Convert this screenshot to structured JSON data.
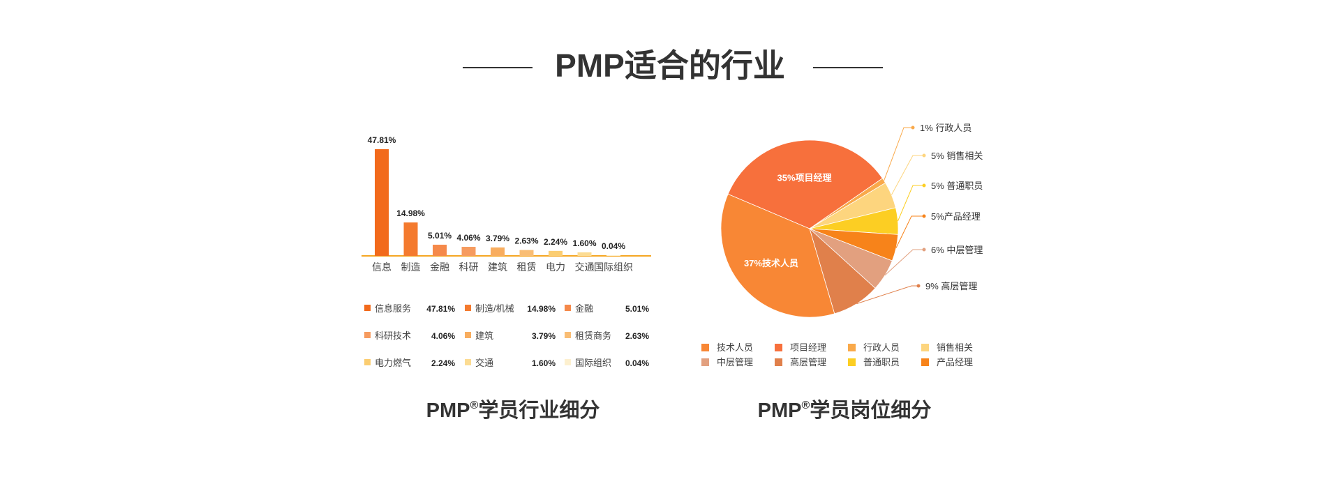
{
  "page": {
    "title": "PMP适合的行业",
    "left_caption": "PMP",
    "left_caption_sup": "®",
    "left_caption_rest": "学员行业细分",
    "right_caption": "PMP",
    "right_caption_sup": "®",
    "right_caption_rest": "学员岗位细分"
  },
  "colors": {
    "bar_colors": [
      "#f26a1b",
      "#f47a2e",
      "#f5894a",
      "#f69b5f",
      "#f8ad5f",
      "#f9bd74",
      "#fbcd71",
      "#fcdc93",
      "#fdf0cf"
    ],
    "axis": "#f5a623"
  },
  "chart_data": [
    {
      "type": "bar",
      "categories": [
        "信息",
        "制造",
        "金融",
        "科研",
        "建筑",
        "租赁",
        "电力",
        "交通",
        "国际组织"
      ],
      "values": [
        47.81,
        14.98,
        5.01,
        4.06,
        3.79,
        2.63,
        2.24,
        1.6,
        0.04
      ],
      "value_labels": [
        "47.81%",
        "14.98%",
        "5.01%",
        "4.06%",
        "3.79%",
        "2.63%",
        "2.24%",
        "1.60%",
        "0.04%"
      ],
      "legend": [
        {
          "label": "信息服务",
          "value": "47.81%"
        },
        {
          "label": "制造/机械",
          "value": "14.98%"
        },
        {
          "label": "金融",
          "value": "5.01%"
        },
        {
          "label": "科研技术",
          "value": "4.06%"
        },
        {
          "label": "建筑",
          "value": "3.79%"
        },
        {
          "label": "租赁商务",
          "value": "2.63%"
        },
        {
          "label": "电力燃气",
          "value": "2.24%"
        },
        {
          "label": "交通",
          "value": "1.60%"
        },
        {
          "label": "国际组织",
          "value": "0.04%"
        }
      ]
    },
    {
      "type": "pie",
      "slices": [
        {
          "name": "项目经理",
          "value": 35,
          "label": "35%项目经理",
          "color": "#f7703c"
        },
        {
          "name": "行政人员",
          "value": 1,
          "label": "1% 行政人员",
          "color": "#f9a94a"
        },
        {
          "name": "销售相关",
          "value": 5,
          "label": "5% 销售相关",
          "color": "#fdd57e"
        },
        {
          "name": "普通职员",
          "value": 5,
          "label": "5% 普通职员",
          "color": "#fcce23"
        },
        {
          "name": "产品经理",
          "value": 5,
          "label": "5%产品经理",
          "color": "#f7831a"
        },
        {
          "name": "中层管理",
          "value": 6,
          "label": "6% 中层管理",
          "color": "#e2a07f"
        },
        {
          "name": "高层管理",
          "value": 9,
          "label": "9% 高层管理",
          "color": "#e0804b"
        },
        {
          "name": "技术人员",
          "value": 37,
          "label": "37%技术人员",
          "color": "#f88735"
        }
      ],
      "legend": [
        "技术人员",
        "项目经理",
        "行政人员",
        "销售相关",
        "中层管理",
        "高层管理",
        "普通职员",
        "产品经理"
      ],
      "legend_colors": [
        "#f88735",
        "#f7703c",
        "#f9a94a",
        "#fdd57e",
        "#e2a07f",
        "#e0804b",
        "#fcce23",
        "#f7831a"
      ]
    }
  ]
}
